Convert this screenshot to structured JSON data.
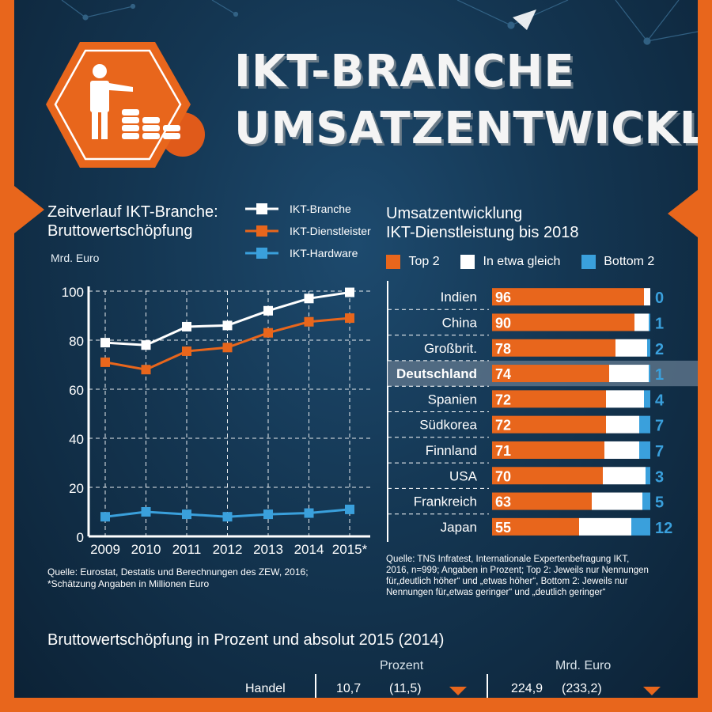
{
  "header": {
    "title_line1": "IKT-BRANCHE",
    "title_line2": "UMSATZENTWICKLUNG",
    "icon": "businessman-coins-icon"
  },
  "colors": {
    "accent": "#e8661c",
    "white": "#ffffff",
    "blue": "#3aa0dc",
    "background": "#143652"
  },
  "left_chart": {
    "heading_line1": "Zeitverlauf IKT-Branche:",
    "heading_line2": "Bruttowertschöpfung",
    "unit": "Mrd. Euro",
    "source_line1": "Quelle: Eurostat, Destatis und Berechnungen des ZEW, 2016;",
    "source_line2": "*Schätzung Angaben in Millionen Euro"
  },
  "right_chart": {
    "heading_line1": "Umsatzentwicklung",
    "heading_line2": "IKT-Dienstleistung bis 2018",
    "source_line1": "Quelle: TNS Infratest, Internationale Expertenbefragung IKT,",
    "source_line2": "2016, n=999; Angaben in Prozent; Top 2: Jeweils nur Nennungen",
    "source_line3": "für„deutlich höher“ und „etwas höher“, Bottom 2: Jeweils nur",
    "source_line4": "Nennungen für„etwas geringer“ und „deutlich geringer“"
  },
  "chart_data": [
    {
      "type": "line",
      "x": [
        "2009",
        "2010",
        "2011",
        "2012",
        "2013",
        "2014",
        "2015*"
      ],
      "ylim": [
        0,
        100
      ],
      "yticks": [
        "0",
        "20",
        "40",
        "60",
        "80",
        "100"
      ],
      "ylabel": "Mrd. Euro",
      "grid": true,
      "legend_placement": "top",
      "series": [
        {
          "name": "IKT-Branche",
          "color": "#ffffff",
          "values": [
            79,
            78,
            85.5,
            86,
            92,
            97,
            99.5
          ]
        },
        {
          "name": "IKT-Dienstleister",
          "color": "#e8661c",
          "values": [
            71,
            68,
            75.5,
            77,
            83,
            87.5,
            89
          ]
        },
        {
          "name": "IKT-Hardware",
          "color": "#3aa0dc",
          "values": [
            8,
            10,
            9,
            8,
            9,
            9.5,
            11
          ]
        }
      ]
    },
    {
      "type": "bar",
      "stacked": true,
      "legend": [
        "Top 2",
        "In etwa gleich",
        "Bottom 2"
      ],
      "legend_colors": [
        "#e8661c",
        "#ffffff",
        "#3aa0dc"
      ],
      "highlight": "Deutschland",
      "categories": [
        "Indien",
        "China",
        "Großbrit.",
        "Deutschland",
        "Spanien",
        "Südkorea",
        "Finnland",
        "USA",
        "Frankreich",
        "Japan"
      ],
      "series": [
        {
          "name": "Top 2",
          "values": [
            96,
            90,
            78,
            74,
            72,
            72,
            71,
            70,
            63,
            55
          ],
          "labels": [
            "96",
            "90",
            "78",
            "74",
            "72",
            "72",
            "71",
            "70",
            "63",
            "55"
          ]
        },
        {
          "name": "In etwa gleich",
          "values": [
            4,
            9,
            20,
            25,
            24,
            21,
            22,
            27,
            32,
            33
          ]
        },
        {
          "name": "Bottom 2",
          "values": [
            0,
            1,
            2,
            1,
            4,
            7,
            7,
            3,
            5,
            12
          ],
          "labels": [
            "0",
            "1",
            "2",
            "1",
            "4",
            "7",
            "7",
            "3",
            "5",
            "12"
          ]
        }
      ]
    }
  ],
  "bottom_table": {
    "title": "Bruttowertschöpfung in Prozent und absolut 2015 (2014)",
    "col_percent": "Prozent",
    "col_euro": "Mrd. Euro",
    "rows": [
      {
        "label": "Handel",
        "pct": "10,7",
        "pct_prev": "(11,5)",
        "eur": "224,9",
        "eur_prev": "(233,2)",
        "trend_icon": "triangle-down-icon"
      }
    ]
  }
}
